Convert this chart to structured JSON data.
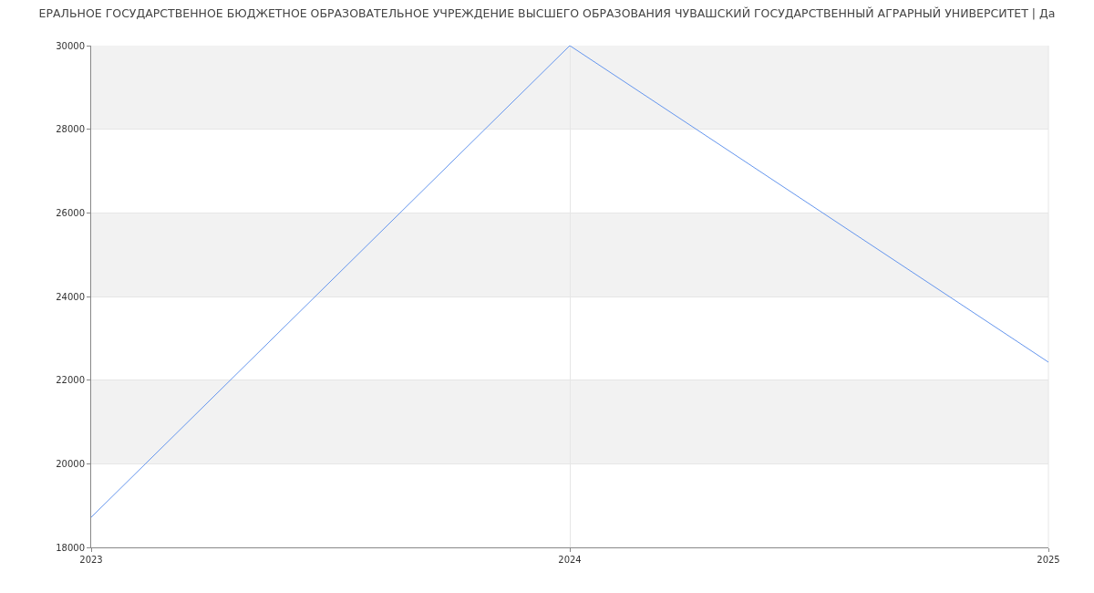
{
  "chart_data": {
    "type": "line",
    "title": "ЕРАЛЬНОЕ ГОСУДАРСТВЕННОЕ БЮДЖЕТНОЕ ОБРАЗОВАТЕЛЬНОЕ УЧРЕЖДЕНИЕ ВЫСШЕГО ОБРАЗОВАНИЯ ЧУВАШСКИЙ ГОСУДАРСТВЕННЫЙ АГРАРНЫЙ УНИВЕРСИТЕТ | Да",
    "x": [
      2023,
      2024,
      2025
    ],
    "series": [
      {
        "color": "#6495ed",
        "values": [
          18720,
          30000,
          22430
        ]
      }
    ],
    "xlim": [
      2023,
      2025
    ],
    "xticks": [
      2023,
      2024,
      2025
    ],
    "ylim": [
      18000,
      30000
    ],
    "yticks": [
      18000,
      20000,
      22000,
      24000,
      26000,
      28000,
      30000
    ],
    "bands": [
      {
        "axis": "y",
        "from": 20000,
        "to": 22000,
        "color": "#f2f2f2"
      },
      {
        "axis": "y",
        "from": 24000,
        "to": 26000,
        "color": "#f2f2f2"
      },
      {
        "axis": "y",
        "from": 28000,
        "to": 30000,
        "color": "#f2f2f2"
      }
    ],
    "grid": true,
    "marker": "none",
    "line_style": "solid"
  }
}
